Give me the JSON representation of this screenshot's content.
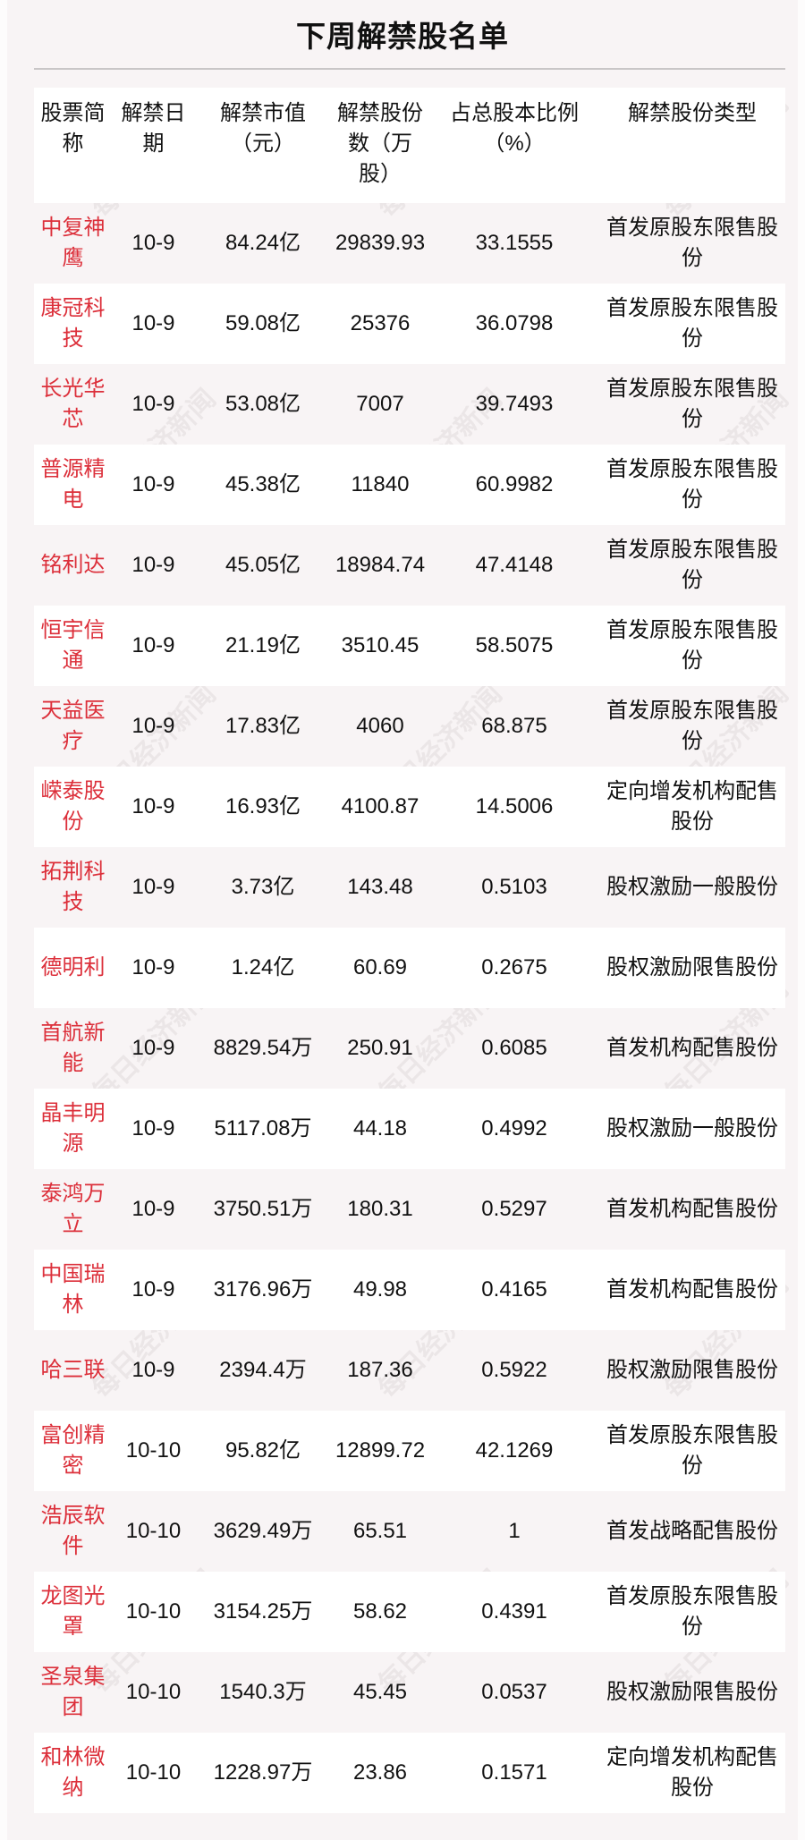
{
  "title": "下周解禁股名单",
  "watermark": "每日经济新闻",
  "colors": {
    "name_red": "#dc2f3a",
    "background": "#f8f4f5"
  },
  "headers": [
    "股票简称",
    "解禁日期",
    "解禁市值（元）",
    "解禁股份数（万股）",
    "占总股本比例（%）",
    "解禁股份类型"
  ],
  "rows": [
    [
      "中复神鹰",
      "10-9",
      "84.24亿",
      "29839.93",
      "33.1555",
      "首发原股东限售股份"
    ],
    [
      "康冠科技",
      "10-9",
      "59.08亿",
      "25376",
      "36.0798",
      "首发原股东限售股份"
    ],
    [
      "长光华芯",
      "10-9",
      "53.08亿",
      "7007",
      "39.7493",
      "首发原股东限售股份"
    ],
    [
      "普源精电",
      "10-9",
      "45.38亿",
      "11840",
      "60.9982",
      "首发原股东限售股份"
    ],
    [
      "铭利达",
      "10-9",
      "45.05亿",
      "18984.74",
      "47.4148",
      "首发原股东限售股份"
    ],
    [
      "恒宇信通",
      "10-9",
      "21.19亿",
      "3510.45",
      "58.5075",
      "首发原股东限售股份"
    ],
    [
      "天益医疗",
      "10-9",
      "17.83亿",
      "4060",
      "68.875",
      "首发原股东限售股份"
    ],
    [
      "嵘泰股份",
      "10-9",
      "16.93亿",
      "4100.87",
      "14.5006",
      "定向增发机构配售股份"
    ],
    [
      "拓荆科技",
      "10-9",
      "3.73亿",
      "143.48",
      "0.5103",
      "股权激励一般股份"
    ],
    [
      "德明利",
      "10-9",
      "1.24亿",
      "60.69",
      "0.2675",
      "股权激励限售股份"
    ],
    [
      "首航新能",
      "10-9",
      "8829.54万",
      "250.91",
      "0.6085",
      "首发机构配售股份"
    ],
    [
      "晶丰明源",
      "10-9",
      "5117.08万",
      "44.18",
      "0.4992",
      "股权激励一般股份"
    ],
    [
      "泰鸿万立",
      "10-9",
      "3750.51万",
      "180.31",
      "0.5297",
      "首发机构配售股份"
    ],
    [
      "中国瑞林",
      "10-9",
      "3176.96万",
      "49.98",
      "0.4165",
      "首发机构配售股份"
    ],
    [
      "哈三联",
      "10-9",
      "2394.4万",
      "187.36",
      "0.5922",
      "股权激励限售股份"
    ],
    [
      "富创精密",
      "10-10",
      "95.82亿",
      "12899.72",
      "42.1269",
      "首发原股东限售股份"
    ],
    [
      "浩辰软件",
      "10-10",
      "3629.49万",
      "65.51",
      "1",
      "首发战略配售股份"
    ],
    [
      "龙图光罩",
      "10-10",
      "3154.25万",
      "58.62",
      "0.4391",
      "首发原股东限售股份"
    ],
    [
      "圣泉集团",
      "10-10",
      "1540.3万",
      "45.45",
      "0.0537",
      "股权激励限售股份"
    ],
    [
      "和林微纳",
      "10-10",
      "1228.97万",
      "23.86",
      "0.1571",
      "定向增发机构配售股份"
    ]
  ]
}
